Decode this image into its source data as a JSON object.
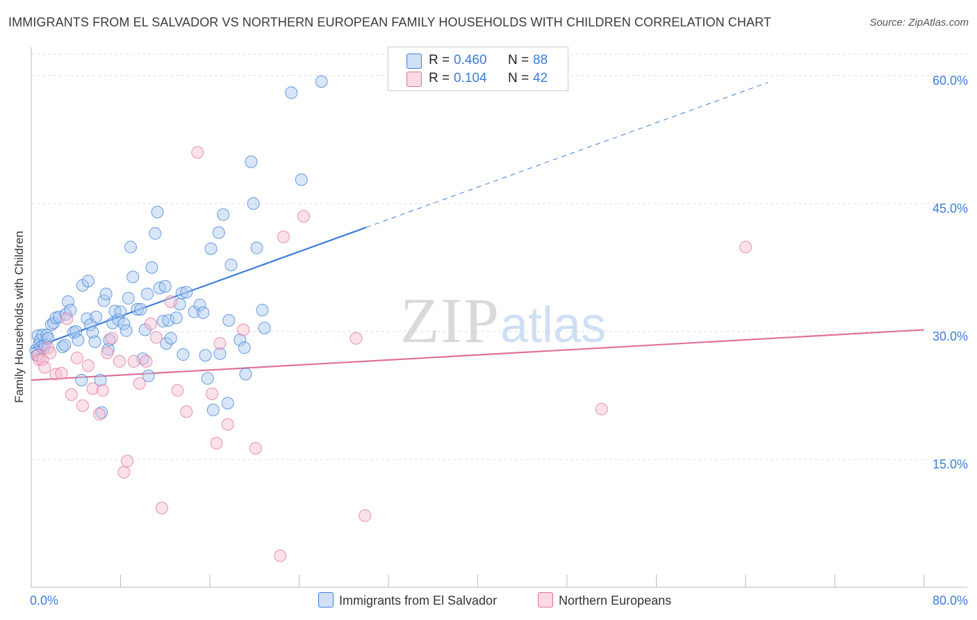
{
  "header": {
    "title": "IMMIGRANTS FROM EL SALVADOR VS NORTHERN EUROPEAN FAMILY HOUSEHOLDS WITH CHILDREN CORRELATION CHART",
    "source": "Source: ZipAtlas.com"
  },
  "watermark": "ZIPatlas",
  "legend_top": [
    {
      "r_label": "R =",
      "r": "0.460",
      "n_label": "N =",
      "n": "88",
      "color": "#a9c8f0"
    },
    {
      "r_label": "R =",
      "r": "0.104",
      "n_label": "N =",
      "n": "42",
      "color": "#f7bcd0"
    }
  ],
  "legend_bottom": [
    {
      "label": "Immigrants from El Salvador",
      "color": "#a9c8f0"
    },
    {
      "label": "Northern Europeans",
      "color": "#f7bcd0"
    }
  ],
  "chart_data": {
    "type": "scatter",
    "xlabel": "",
    "ylabel": "Family Households with Children",
    "xlim": [
      0,
      80
    ],
    "ylim": [
      0,
      63
    ],
    "x_tick_labels": [
      {
        "value": 0,
        "label": "0.0%"
      },
      {
        "value": 80,
        "label": "80.0%"
      }
    ],
    "y_tick_labels": [
      {
        "value": 15,
        "label": "15.0%"
      },
      {
        "value": 30,
        "label": "30.0%"
      },
      {
        "value": 45,
        "label": "45.0%"
      },
      {
        "value": 60,
        "label": "60.0%"
      }
    ],
    "grid": true,
    "series": [
      {
        "name": "Immigrants from El Salvador",
        "color": "#3b7dd8",
        "fill": "#a9c8f0",
        "trend": {
          "x0": 0,
          "y0": 28.0,
          "x1": 30,
          "y1": 42.2,
          "dashed_to_x": 66,
          "dashed_to_y": 59.2
        },
        "points": [
          [
            0.4,
            27.8
          ],
          [
            0.5,
            27.2
          ],
          [
            0.6,
            29.5
          ],
          [
            0.7,
            28.5
          ],
          [
            0.8,
            29.0
          ],
          [
            0.9,
            28.2
          ],
          [
            1.0,
            29.6
          ],
          [
            1.1,
            28.0
          ],
          [
            1.2,
            28.4
          ],
          [
            1.4,
            29.6
          ],
          [
            1.5,
            29.2
          ],
          [
            1.8,
            30.8
          ],
          [
            2.0,
            31.0
          ],
          [
            2.2,
            31.6
          ],
          [
            2.5,
            31.7
          ],
          [
            2.8,
            28.2
          ],
          [
            3.0,
            28.4
          ],
          [
            3.1,
            32.0
          ],
          [
            3.3,
            33.5
          ],
          [
            3.5,
            32.5
          ],
          [
            3.8,
            29.9
          ],
          [
            4.0,
            30.0
          ],
          [
            4.2,
            29.0
          ],
          [
            4.5,
            24.3
          ],
          [
            4.6,
            35.4
          ],
          [
            5.0,
            31.5
          ],
          [
            5.1,
            35.9
          ],
          [
            5.3,
            30.8
          ],
          [
            5.5,
            29.9
          ],
          [
            5.7,
            28.8
          ],
          [
            5.8,
            31.7
          ],
          [
            6.2,
            24.3
          ],
          [
            6.3,
            20.5
          ],
          [
            6.5,
            33.6
          ],
          [
            6.7,
            34.4
          ],
          [
            6.9,
            27.9
          ],
          [
            7.0,
            29.0
          ],
          [
            7.3,
            31.0
          ],
          [
            7.5,
            32.4
          ],
          [
            7.8,
            31.4
          ],
          [
            8.0,
            32.3
          ],
          [
            8.3,
            30.9
          ],
          [
            8.5,
            30.1
          ],
          [
            8.7,
            33.9
          ],
          [
            8.9,
            39.9
          ],
          [
            9.1,
            36.4
          ],
          [
            9.5,
            32.6
          ],
          [
            9.8,
            32.6
          ],
          [
            10.0,
            26.8
          ],
          [
            10.2,
            30.2
          ],
          [
            10.4,
            34.4
          ],
          [
            10.5,
            24.8
          ],
          [
            10.8,
            37.5
          ],
          [
            11.1,
            41.5
          ],
          [
            11.3,
            44.0
          ],
          [
            11.5,
            35.1
          ],
          [
            11.8,
            31.2
          ],
          [
            12.0,
            35.3
          ],
          [
            12.1,
            28.6
          ],
          [
            12.3,
            31.3
          ],
          [
            12.5,
            29.2
          ],
          [
            13.0,
            31.6
          ],
          [
            13.3,
            33.2
          ],
          [
            13.5,
            34.5
          ],
          [
            13.6,
            27.3
          ],
          [
            13.9,
            34.6
          ],
          [
            14.6,
            32.3
          ],
          [
            15.1,
            33.1
          ],
          [
            15.4,
            32.2
          ],
          [
            15.6,
            27.2
          ],
          [
            15.8,
            24.5
          ],
          [
            16.1,
            39.7
          ],
          [
            16.3,
            20.8
          ],
          [
            16.8,
            41.6
          ],
          [
            16.9,
            27.4
          ],
          [
            17.2,
            43.7
          ],
          [
            17.6,
            21.6
          ],
          [
            17.7,
            31.3
          ],
          [
            17.9,
            37.8
          ],
          [
            18.7,
            29.0
          ],
          [
            19.1,
            28.1
          ],
          [
            19.2,
            25.0
          ],
          [
            19.7,
            49.9
          ],
          [
            19.9,
            45.0
          ],
          [
            20.2,
            39.8
          ],
          [
            20.7,
            32.5
          ],
          [
            20.9,
            30.4
          ],
          [
            23.3,
            58.0
          ],
          [
            24.2,
            47.8
          ],
          [
            26.0,
            59.3
          ]
        ]
      },
      {
        "name": "Northern Europeans",
        "color": "#e0709a",
        "fill": "#f7bcd0",
        "trend": {
          "x0": 0,
          "y0": 24.3,
          "x1": 80,
          "y1": 30.2
        },
        "points": [
          [
            0.6,
            27.2
          ],
          [
            0.7,
            26.7
          ],
          [
            1.0,
            26.7
          ],
          [
            1.2,
            25.8
          ],
          [
            1.5,
            28.1
          ],
          [
            1.7,
            27.5
          ],
          [
            2.2,
            25.0
          ],
          [
            2.7,
            25.1
          ],
          [
            3.2,
            31.5
          ],
          [
            3.6,
            22.6
          ],
          [
            4.1,
            26.9
          ],
          [
            4.6,
            21.3
          ],
          [
            5.1,
            26.0
          ],
          [
            5.5,
            23.3
          ],
          [
            6.1,
            20.3
          ],
          [
            6.4,
            23.1
          ],
          [
            6.8,
            27.5
          ],
          [
            7.2,
            29.2
          ],
          [
            7.9,
            26.5
          ],
          [
            8.3,
            13.5
          ],
          [
            8.6,
            14.8
          ],
          [
            9.2,
            26.5
          ],
          [
            9.7,
            23.9
          ],
          [
            10.3,
            26.5
          ],
          [
            10.7,
            30.9
          ],
          [
            11.2,
            29.3
          ],
          [
            11.7,
            9.3
          ],
          [
            12.5,
            33.5
          ],
          [
            13.1,
            23.1
          ],
          [
            13.9,
            20.6
          ],
          [
            14.9,
            51.0
          ],
          [
            16.2,
            22.7
          ],
          [
            16.6,
            16.9
          ],
          [
            16.9,
            28.6
          ],
          [
            17.6,
            19.1
          ],
          [
            19.0,
            30.2
          ],
          [
            20.1,
            16.3
          ],
          [
            22.6,
            41.1
          ],
          [
            22.3,
            3.7
          ],
          [
            24.4,
            43.5
          ],
          [
            29.1,
            29.2
          ],
          [
            29.9,
            8.4
          ],
          [
            51.1,
            20.9
          ],
          [
            64.0,
            39.9
          ]
        ]
      }
    ]
  }
}
